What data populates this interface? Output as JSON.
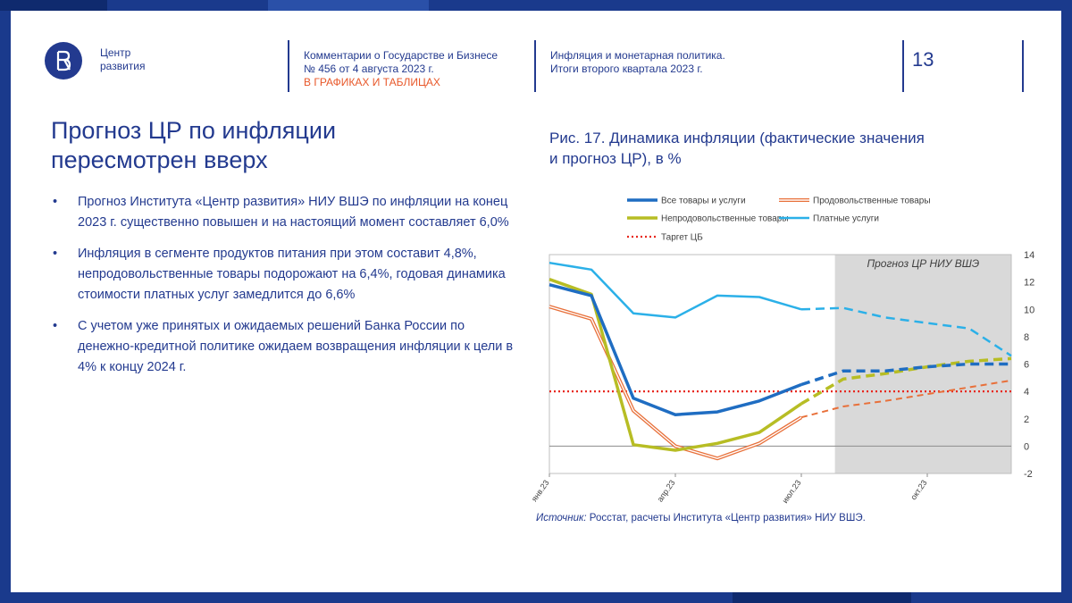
{
  "brand": {
    "line1": "Центр",
    "line2": "развития"
  },
  "header": {
    "col1": {
      "line1": "Комментарии о Государстве и Бизнесе",
      "line2": "№ 456 от 4 августа 2023 г.",
      "line3": "В ГРАФИКАХ И ТАБЛИЦАХ"
    },
    "col2": {
      "line1": "Инфляция и монетарная политика.",
      "line2": "Итоги второго квартала 2023 г."
    },
    "page_number": "13"
  },
  "main": {
    "title_line1": "Прогноз ЦР по инфляции",
    "title_line2": "пересмотрен вверх",
    "bullets": [
      "Прогноз Института «Центр развития» НИУ ВШЭ по инфляции на конец 2023 г. существенно повышен и на настоящий момент составляет 6,0%",
      "Инфляция в сегменте продуктов питания при этом составит 4,8%, непродовольственные товары подорожают на 6,4%, годовая динамика стоимости платных услуг замедлится до 6,6%",
      "С учетом уже принятых и ожидаемых решений Банка России по денежно-кредитной политике ожидаем возвращения инфляции к цели в 4% к концу 2024 г."
    ]
  },
  "figure": {
    "title_line1": "Рис. 17. Динамика инфляции (фактические значения",
    "title_line2": "и прогноз ЦР), в %",
    "source_label": "Источник:",
    "source_text": " Росстат, расчеты Института «Центр развития» НИУ ВШЭ."
  },
  "chart_data": {
    "type": "line",
    "title": "Рис. 17. Динамика инфляции (фактические значения и прогноз ЦР), в %",
    "x_ticks": [
      "янв.23",
      "апр.23",
      "июл.23",
      "окт.23"
    ],
    "x_index": [
      0,
      1,
      2,
      3,
      4,
      5,
      6,
      7,
      8,
      9,
      10,
      11
    ],
    "ylim": [
      -2,
      14
    ],
    "yticks": [
      -2,
      0,
      2,
      4,
      6,
      8,
      10,
      12,
      14
    ],
    "forecast_region": {
      "from_index": 6.8,
      "to_index": 11,
      "label": "Прогноз ЦР НИУ ВШЭ"
    },
    "target": {
      "name": "Таргет ЦБ",
      "value": 4
    },
    "series": [
      {
        "name": "Все товары и услуги",
        "color": "#1f6dc2",
        "style": "solid-thick",
        "values": [
          11.8,
          11.0,
          3.5,
          2.3,
          2.5,
          3.3,
          4.5,
          5.5,
          5.5,
          5.8,
          6.0,
          6.0
        ]
      },
      {
        "name": "Продовольственные товары",
        "color": "#e8703a",
        "style": "double",
        "values": [
          10.2,
          9.3,
          2.6,
          0.0,
          -0.9,
          0.2,
          2.1,
          2.9,
          3.3,
          3.8,
          4.3,
          4.8
        ]
      },
      {
        "name": "Непродовольственные товары",
        "color": "#b7bd24",
        "style": "solid-thick",
        "values": [
          12.2,
          11.1,
          0.1,
          -0.3,
          0.2,
          1.0,
          3.1,
          4.9,
          5.3,
          5.8,
          6.2,
          6.4
        ]
      },
      {
        "name": "Платные услуги",
        "color": "#2bb0e8",
        "style": "solid",
        "values": [
          13.4,
          12.9,
          9.7,
          9.4,
          11.0,
          10.9,
          10.0,
          10.1,
          9.4,
          9.0,
          8.6,
          6.6
        ]
      }
    ],
    "forecast_start_index": 6,
    "legend_placement": "top"
  }
}
